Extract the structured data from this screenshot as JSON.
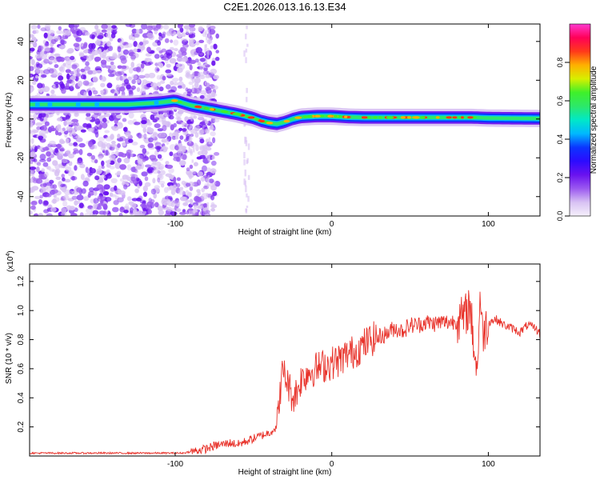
{
  "title": "C2E1.2026.013.16.13.E34",
  "colors": {
    "trace": "#e8322a",
    "background": "#ffffff",
    "axis": "#000000",
    "colormap": [
      "#f5f0fb",
      "#d8c2f3",
      "#9b59f0",
      "#6a12ef",
      "#2c0bff",
      "#0b34ff",
      "#00b8ff",
      "#00e8c8",
      "#2ce86a",
      "#3ff02a",
      "#d6f000",
      "#ffb000",
      "#ff3a1a",
      "#ff0058",
      "#ff3ad0"
    ]
  },
  "chart_data": [
    {
      "type": "heatmap",
      "title": "C2E1.2026.013.16.13.E34",
      "xlabel": "Height of straight line (km)",
      "ylabel": "Frequency (Hz)",
      "xlim": [
        -193,
        133
      ],
      "ylim": [
        -50,
        49
      ],
      "xticks": [
        -100,
        0,
        100
      ],
      "xtick_labels": [
        "-100",
        "0",
        "100"
      ],
      "yticks": [
        -40,
        -20,
        0,
        20,
        40
      ],
      "ytick_labels": [
        "-40",
        "-20",
        "0",
        "20",
        "40"
      ],
      "ridge": {
        "x": [
          -193,
          -160,
          -130,
          -110,
          -100,
          -90,
          -80,
          -70,
          -60,
          -55,
          -50,
          -45,
          -40,
          -35,
          -30,
          -25,
          -20,
          -10,
          0,
          10,
          20,
          40,
          60,
          80,
          90,
          100,
          133
        ],
        "freq": [
          7.5,
          7.5,
          7.5,
          8.5,
          9.5,
          7.0,
          5.5,
          4.0,
          2.5,
          1.5,
          0.5,
          -1.0,
          -2.0,
          -2.5,
          -1.5,
          0.0,
          1.0,
          1.5,
          1.5,
          1.0,
          0.8,
          0.8,
          0.8,
          0.8,
          0.8,
          0.5,
          0.3
        ]
      },
      "colorbar": {
        "label": "Normalized spectral amplitude",
        "range": [
          0,
          1
        ],
        "ticks": [
          0.0,
          0.2,
          0.4,
          0.6,
          0.8
        ],
        "tick_labels": [
          "0.0",
          "0.2",
          "0.4",
          "0.6",
          "0.8"
        ]
      }
    },
    {
      "type": "line",
      "xlabel": "Height of straight line (km)",
      "ylabel": "SNR (10 * v/v)",
      "exponent_label": "(x10",
      "exponent_value": "4",
      "xlim": [
        -193,
        133
      ],
      "ylim": [
        0.0,
        1.32
      ],
      "xticks": [
        -100,
        0,
        100
      ],
      "xtick_labels": [
        "-100",
        "0",
        "100"
      ],
      "yticks": [
        0.2,
        0.4,
        0.6,
        0.8,
        1.0,
        1.2
      ],
      "ytick_labels": [
        "0.2",
        "0.4",
        "0.6",
        "0.8",
        "1.0",
        "1.2"
      ],
      "series": [
        {
          "name": "SNR",
          "x": [
            -193,
            -170,
            -150,
            -130,
            -110,
            -95,
            -90,
            -85,
            -80,
            -75,
            -70,
            -65,
            -60,
            -55,
            -50,
            -45,
            -40,
            -35,
            -33,
            -31,
            -30,
            -28,
            -25,
            -22,
            -20,
            -15,
            -10,
            -5,
            0,
            5,
            10,
            15,
            20,
            25,
            30,
            35,
            40,
            45,
            50,
            55,
            60,
            65,
            70,
            75,
            80,
            85,
            88,
            90,
            92,
            93,
            94,
            95,
            96,
            98,
            100,
            105,
            110,
            115,
            120,
            125,
            130,
            133
          ],
          "y": [
            0.02,
            0.02,
            0.02,
            0.02,
            0.02,
            0.02,
            0.03,
            0.04,
            0.05,
            0.07,
            0.08,
            0.09,
            0.08,
            0.1,
            0.12,
            0.14,
            0.16,
            0.2,
            0.45,
            0.6,
            0.55,
            0.5,
            0.4,
            0.45,
            0.52,
            0.58,
            0.6,
            0.62,
            0.64,
            0.66,
            0.7,
            0.72,
            0.76,
            0.8,
            0.82,
            0.84,
            0.88,
            0.86,
            0.9,
            0.9,
            0.92,
            0.91,
            0.92,
            0.92,
            0.93,
            0.95,
            1.05,
            0.85,
            0.65,
            0.55,
            0.95,
            1.1,
            0.85,
            0.88,
            0.92,
            0.94,
            0.9,
            0.88,
            0.85,
            0.9,
            0.88,
            0.84
          ]
        }
      ]
    }
  ]
}
